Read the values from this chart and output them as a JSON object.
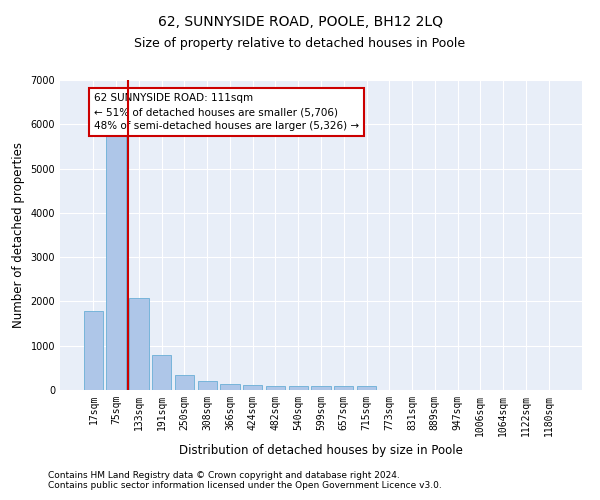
{
  "title": "62, SUNNYSIDE ROAD, POOLE, BH12 2LQ",
  "subtitle": "Size of property relative to detached houses in Poole",
  "xlabel": "Distribution of detached houses by size in Poole",
  "ylabel": "Number of detached properties",
  "categories": [
    "17sqm",
    "75sqm",
    "133sqm",
    "191sqm",
    "250sqm",
    "308sqm",
    "366sqm",
    "424sqm",
    "482sqm",
    "540sqm",
    "599sqm",
    "657sqm",
    "715sqm",
    "773sqm",
    "831sqm",
    "889sqm",
    "947sqm",
    "1006sqm",
    "1064sqm",
    "1122sqm",
    "1180sqm"
  ],
  "values": [
    1780,
    5800,
    2080,
    800,
    340,
    200,
    130,
    110,
    90,
    90,
    100,
    90,
    90,
    0,
    0,
    0,
    0,
    0,
    0,
    0,
    0
  ],
  "bar_color": "#aec6e8",
  "bar_edge_color": "#6aaed6",
  "vline_color": "#cc0000",
  "vline_x_idx": 1.5,
  "annotation_text": "62 SUNNYSIDE ROAD: 111sqm\n← 51% of detached houses are smaller (5,706)\n48% of semi-detached houses are larger (5,326) →",
  "annotation_box_color": "#ffffff",
  "annotation_box_edge": "#cc0000",
  "ylim": [
    0,
    7000
  ],
  "yticks": [
    0,
    1000,
    2000,
    3000,
    4000,
    5000,
    6000,
    7000
  ],
  "footnote1": "Contains HM Land Registry data © Crown copyright and database right 2024.",
  "footnote2": "Contains public sector information licensed under the Open Government Licence v3.0.",
  "bg_color": "#e8eef8",
  "grid_color": "#ffffff",
  "title_fontsize": 10,
  "subtitle_fontsize": 9,
  "axis_label_fontsize": 8.5,
  "tick_fontsize": 7,
  "annotation_fontsize": 7.5,
  "footnote_fontsize": 6.5
}
